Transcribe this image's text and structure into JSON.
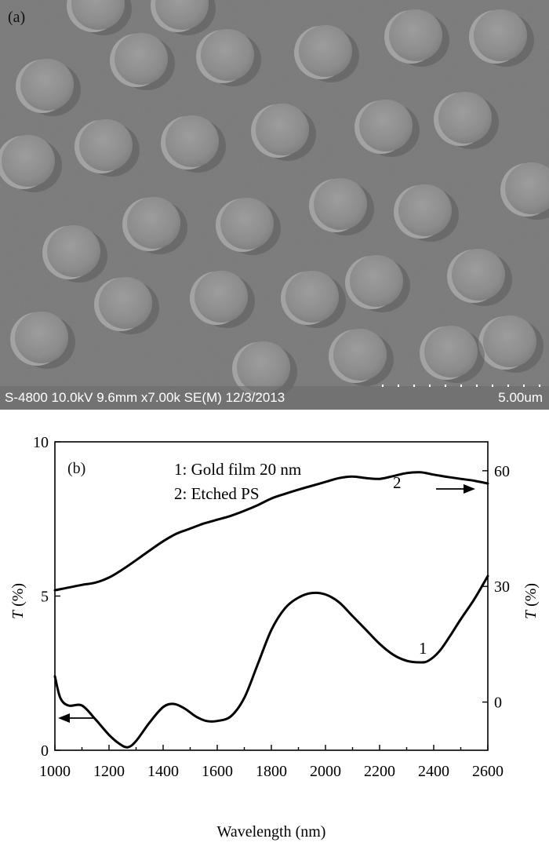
{
  "panel_a": {
    "label": "(a)",
    "info_bar": "S-4800 10.0kV 9.6mm x7.00k SE(M) 12/3/2013",
    "scale_bar_label": "5.00um"
  },
  "panel_b": {
    "label": "(b)",
    "legend": [
      "1: Gold film 20 nm",
      "2: Etched PS"
    ],
    "curve_labels": [
      "1",
      "2"
    ]
  },
  "chart_data": {
    "type": "line",
    "xlabel": "Wavelength (nm)",
    "ylabel_left": {
      "italic": "T",
      "rest": "(%)"
    },
    "ylabel_right": {
      "italic": "T",
      "rest": "(%)"
    },
    "xlim": [
      1000,
      2600
    ],
    "ylim_left": [
      0,
      10
    ],
    "ylim_right": [
      -12.5,
      67.5
    ],
    "x_ticks": [
      1000,
      1200,
      1400,
      1600,
      1800,
      2000,
      2200,
      2400,
      2600
    ],
    "y_ticks_left": [
      0,
      5,
      10
    ],
    "y_ticks_right": [
      0,
      30,
      60
    ],
    "grid": false,
    "series": [
      {
        "name": "1: Gold film 20 nm",
        "axis": "left",
        "x": [
          1000,
          1020,
          1050,
          1100,
          1150,
          1200,
          1240,
          1270,
          1300,
          1350,
          1400,
          1440,
          1480,
          1520,
          1560,
          1600,
          1650,
          1700,
          1750,
          1800,
          1850,
          1900,
          1950,
          2000,
          2050,
          2100,
          2150,
          2200,
          2250,
          2300,
          2350,
          2380,
          2420,
          2460,
          2500,
          2550,
          2600
        ],
        "y": [
          2.4,
          1.7,
          1.45,
          1.45,
          1.0,
          0.5,
          0.2,
          0.1,
          0.3,
          0.9,
          1.4,
          1.5,
          1.35,
          1.1,
          0.95,
          0.95,
          1.1,
          1.7,
          2.8,
          3.9,
          4.6,
          4.95,
          5.1,
          5.05,
          4.8,
          4.35,
          3.9,
          3.45,
          3.1,
          2.9,
          2.85,
          2.9,
          3.2,
          3.7,
          4.25,
          4.9,
          5.65
        ]
      },
      {
        "name": "2: Etched PS",
        "axis": "right",
        "x": [
          1000,
          1050,
          1100,
          1150,
          1200,
          1250,
          1300,
          1350,
          1400,
          1450,
          1500,
          1550,
          1600,
          1650,
          1700,
          1750,
          1800,
          1850,
          1900,
          1950,
          2000,
          2050,
          2100,
          2150,
          2200,
          2250,
          2300,
          2350,
          2400,
          2450,
          2500,
          2550,
          2600
        ],
        "y": [
          29,
          29.7,
          30.4,
          31.0,
          32.3,
          34.4,
          36.8,
          39.3,
          41.7,
          43.7,
          45.0,
          46.3,
          47.3,
          48.3,
          49.6,
          51.1,
          52.8,
          54.0,
          55.1,
          56.1,
          57.1,
          58.1,
          58.5,
          58.1,
          57.9,
          58.6,
          59.4,
          59.6,
          59.0,
          58.4,
          57.9,
          57.4,
          56.7
        ]
      }
    ]
  }
}
